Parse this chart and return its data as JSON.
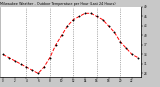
{
  "title": "Milwaukee Weather - Outdoor Temperature per Hour (Last 24 Hours)",
  "hours": [
    0,
    1,
    2,
    3,
    4,
    5,
    6,
    7,
    8,
    9,
    10,
    11,
    12,
    13,
    14,
    15,
    16,
    17,
    18,
    19,
    20,
    21,
    22,
    23
  ],
  "temps": [
    34,
    33,
    32,
    31,
    30,
    29,
    28,
    30,
    33,
    37,
    40,
    43,
    45,
    46,
    47,
    47,
    46,
    45,
    43,
    41,
    38,
    36,
    34,
    33
  ],
  "line_color": "#ff0000",
  "marker_color": "#000000",
  "bg_color": "#c8c8c8",
  "plot_bg": "#ffffff",
  "grid_color": "#666666",
  "ylim": [
    27,
    49
  ],
  "yticks": [
    28,
    31,
    34,
    37,
    40,
    43,
    46,
    49
  ],
  "ytick_labels": [
    "28",
    "31",
    "34",
    "37",
    "40",
    "43",
    "46",
    "49"
  ],
  "xtick_positions": [
    0,
    2,
    4,
    6,
    8,
    10,
    12,
    14,
    16,
    18,
    20,
    22
  ],
  "xtick_labels": [
    "0",
    "2",
    "4",
    "6",
    "8",
    "10",
    "12",
    "14",
    "16",
    "18",
    "20",
    "22"
  ],
  "vgrid_positions": [
    4,
    8,
    12,
    16,
    20
  ]
}
